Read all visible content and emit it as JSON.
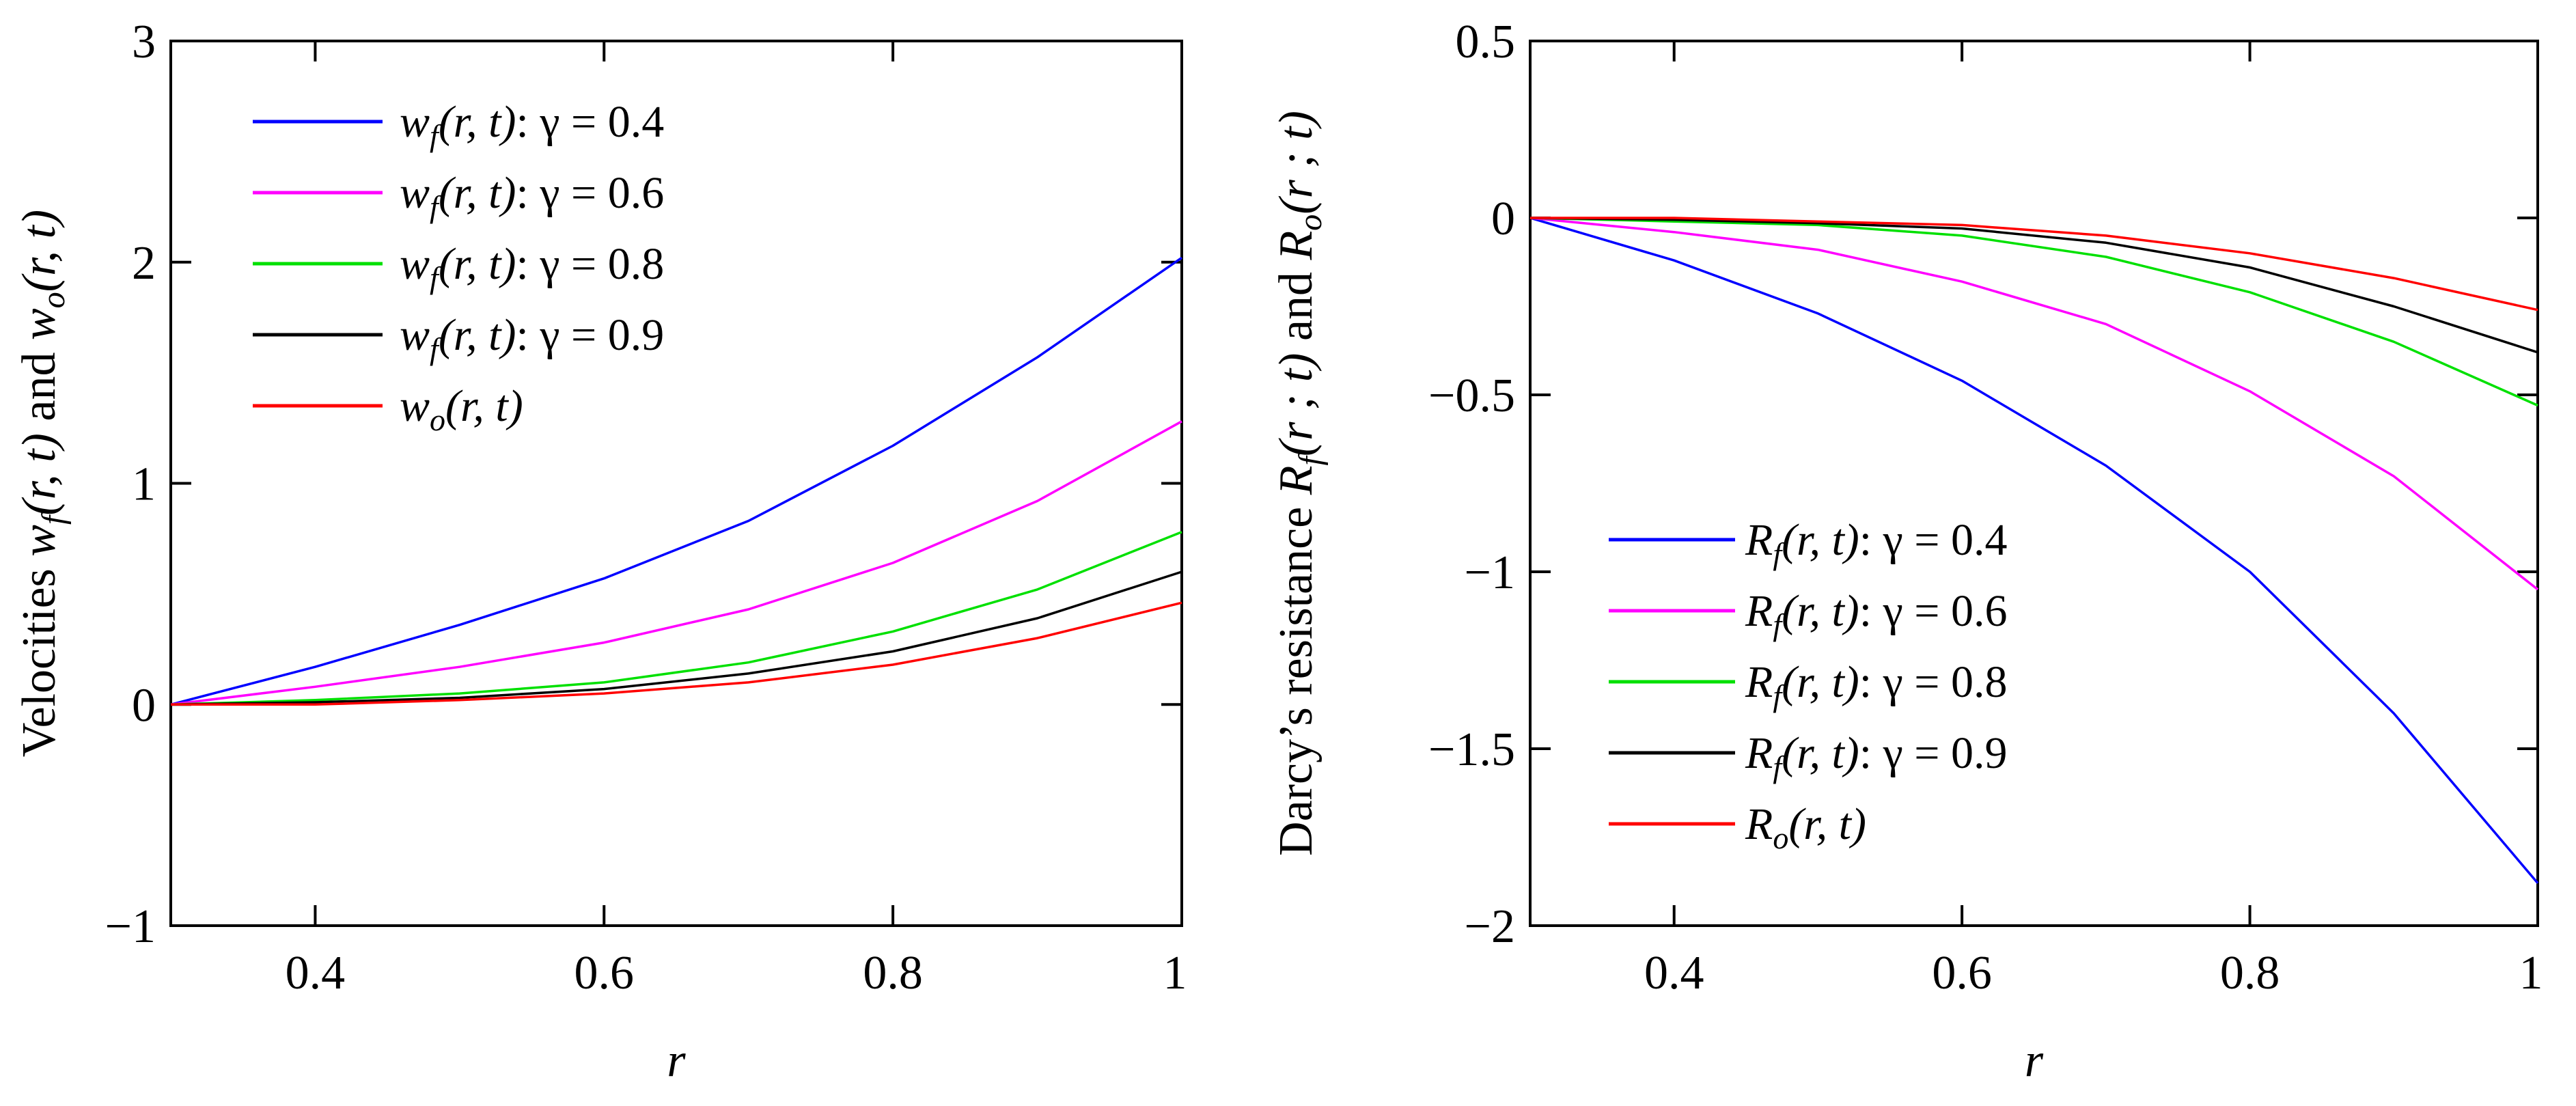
{
  "chart_data": [
    {
      "type": "line",
      "name": "velocities",
      "title": "",
      "xlabel": "r",
      "ylabel": "Velocities w_f(r, t) and w_o(r, t)",
      "xlim": [
        0.3,
        1
      ],
      "ylim": [
        -1,
        3
      ],
      "xticks": [
        0.4,
        0.6,
        0.8,
        1
      ],
      "yticks": [
        -1,
        0,
        1,
        2,
        3
      ],
      "xtick_labels": [
        "0.4",
        "0.6",
        "0.8",
        "1"
      ],
      "ytick_labels": [
        "−1",
        "0",
        "1",
        "2",
        "3"
      ],
      "legend_position": "top-left",
      "x": [
        0.3,
        0.4,
        0.5,
        0.6,
        0.7,
        0.8,
        0.9,
        1.0
      ],
      "series": [
        {
          "name": "w_f(r,t): γ = 0.4",
          "color": "#0000ff",
          "values": [
            0.0,
            0.17,
            0.36,
            0.57,
            0.83,
            1.17,
            1.57,
            2.02
          ]
        },
        {
          "name": "w_f(r,t): γ = 0.6",
          "color": "#ff00ff",
          "values": [
            0.0,
            0.08,
            0.17,
            0.28,
            0.43,
            0.64,
            0.92,
            1.28
          ]
        },
        {
          "name": "w_f(r,t): γ = 0.8",
          "color": "#00e000",
          "values": [
            0.0,
            0.02,
            0.05,
            0.1,
            0.19,
            0.33,
            0.52,
            0.78
          ]
        },
        {
          "name": "w_f(r,t): γ = 0.9",
          "color": "#000000",
          "values": [
            0.0,
            0.01,
            0.03,
            0.07,
            0.14,
            0.24,
            0.39,
            0.6
          ]
        },
        {
          "name": "w_o(r,t)",
          "color": "#ff0000",
          "values": [
            0.0,
            0.0,
            0.02,
            0.05,
            0.1,
            0.18,
            0.3,
            0.46
          ]
        }
      ],
      "legend": [
        {
          "func": "w",
          "sub": "f",
          "args": "(r, t)",
          "param": ": γ = 0.4"
        },
        {
          "func": "w",
          "sub": "f",
          "args": "(r, t)",
          "param": ": γ = 0.6"
        },
        {
          "func": "w",
          "sub": "f",
          "args": "(r, t)",
          "param": ": γ = 0.8"
        },
        {
          "func": "w",
          "sub": "f",
          "args": "(r, t)",
          "param": ": γ = 0.9"
        },
        {
          "func": "w",
          "sub": "o",
          "args": "(r, t)",
          "param": ""
        }
      ],
      "ylabel_parts": {
        "pre": "Velocities ",
        "f1": "w",
        "s1": "f",
        "a1": "(r, t)",
        "mid": " and ",
        "f2": "w",
        "s2": "o",
        "a2": "(r, t)"
      }
    },
    {
      "type": "line",
      "name": "darcy-resistance",
      "title": "",
      "xlabel": "r",
      "ylabel": "Darcy's resistance R_f(r ; t) and R_o(r ; t)",
      "xlim": [
        0.3,
        1
      ],
      "ylim": [
        -2,
        0.5
      ],
      "xticks": [
        0.4,
        0.6,
        0.8,
        1
      ],
      "yticks": [
        -2,
        -1.5,
        -1,
        -0.5,
        0,
        0.5
      ],
      "xtick_labels": [
        "0.4",
        "0.6",
        "0.8",
        "1"
      ],
      "ytick_labels": [
        "−2",
        "−1.5",
        "−1",
        "−0.5",
        "0",
        "0.5"
      ],
      "legend_position": "bottom-left",
      "x": [
        0.3,
        0.4,
        0.5,
        0.6,
        0.7,
        0.8,
        0.9,
        1.0
      ],
      "series": [
        {
          "name": "R_f(r,t): γ = 0.4",
          "color": "#0000ff",
          "values": [
            0.0,
            -0.12,
            -0.27,
            -0.46,
            -0.7,
            -1.0,
            -1.4,
            -1.88
          ]
        },
        {
          "name": "R_f(r,t): γ = 0.6",
          "color": "#ff00ff",
          "values": [
            0.0,
            -0.04,
            -0.09,
            -0.18,
            -0.3,
            -0.49,
            -0.73,
            -1.05
          ]
        },
        {
          "name": "R_f(r,t): γ = 0.8",
          "color": "#00e000",
          "values": [
            0.0,
            -0.01,
            -0.02,
            -0.05,
            -0.11,
            -0.21,
            -0.35,
            -0.53
          ]
        },
        {
          "name": "R_f(r,t): γ = 0.9",
          "color": "#000000",
          "values": [
            0.0,
            -0.005,
            -0.015,
            -0.03,
            -0.07,
            -0.14,
            -0.25,
            -0.38
          ]
        },
        {
          "name": "R_o(r,t)",
          "color": "#ff0000",
          "values": [
            0.0,
            0.0,
            -0.01,
            -0.02,
            -0.05,
            -0.1,
            -0.17,
            -0.26
          ]
        }
      ],
      "legend": [
        {
          "func": "R",
          "sub": "f",
          "args": "(r, t)",
          "param": ": γ = 0.4"
        },
        {
          "func": "R",
          "sub": "f",
          "args": "(r, t)",
          "param": ": γ = 0.6"
        },
        {
          "func": "R",
          "sub": "f",
          "args": "(r, t)",
          "param": ": γ = 0.8"
        },
        {
          "func": "R",
          "sub": "f",
          "args": "(r, t)",
          "param": ": γ = 0.9"
        },
        {
          "func": "R",
          "sub": "o",
          "args": "(r, t)",
          "param": ""
        }
      ],
      "ylabel_parts": {
        "pre": "Darcy’s resistance ",
        "f1": "R",
        "s1": "f",
        "a1": "(r ; t)",
        "mid": " and ",
        "f2": "R",
        "s2": "o",
        "a2": "(r ; t)"
      }
    }
  ]
}
